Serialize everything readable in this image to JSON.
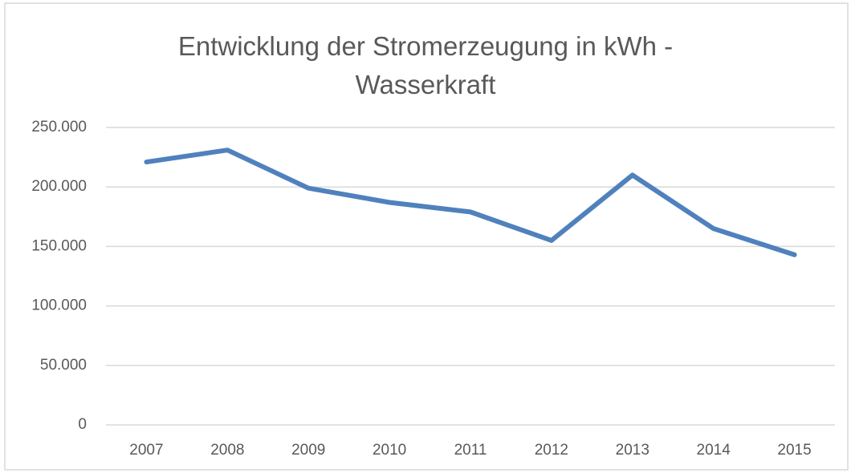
{
  "chart_data": {
    "type": "line",
    "title": "Entwicklung der Stromerzeugung in kWh - Wasserkraft",
    "categories": [
      "2007",
      "2008",
      "2009",
      "2010",
      "2011",
      "2012",
      "2013",
      "2014",
      "2015"
    ],
    "series": [
      {
        "name": "Wasserkraft",
        "color": "#4f81bd",
        "values": [
          221000,
          231000,
          199000,
          187000,
          179000,
          155000,
          210000,
          165000,
          143000
        ]
      }
    ],
    "ylim": [
      0,
      250000
    ],
    "yticks": [
      0,
      {
        "value": 50000,
        "label": "50.000"
      },
      {
        "value": 100000,
        "label": "100.000"
      },
      {
        "value": 150000,
        "label": "150.000"
      },
      {
        "value": 200000,
        "label": "200.000"
      },
      {
        "value": 250000,
        "label": "250.000"
      }
    ],
    "grid": true,
    "legend": false
  }
}
